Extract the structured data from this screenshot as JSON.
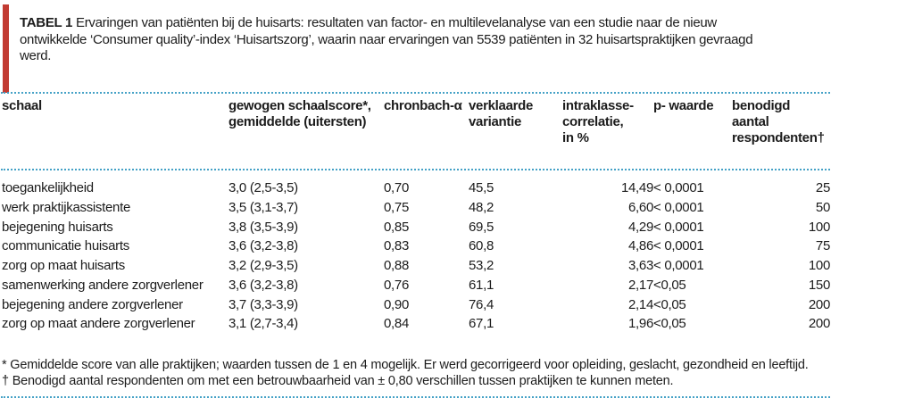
{
  "accent_colors": {
    "red_bar": "#c23b32",
    "dotted_rule": "#44a1c6"
  },
  "title": {
    "label": "TABEL 1",
    "rest_line1": "Ervaringen van patiënten bij de huisarts: resultaten van factor- en multilevelanalyse van een studie naar de nieuw",
    "line2": "ontwikkelde ‘Consumer quality’-index ‘Huisartszorg’, waarin naar ervaringen van 5539 patiënten in 32 huisartspraktijken gevraagd",
    "line3": "werd."
  },
  "table": {
    "header_lines": [
      [
        "schaal"
      ],
      [
        "gewogen schaalscore*,",
        "gemiddelde (uitersten)"
      ],
      [
        "chronbach-α"
      ],
      [
        "verklaarde",
        "variantie"
      ],
      [
        "intraklasse-",
        "correlatie,",
        "in %"
      ],
      [
        "p- waarde"
      ],
      [
        "benodigd",
        "aantal",
        "respondenten†"
      ]
    ],
    "rows": [
      [
        "toegankelijkheid",
        "3,0 (2,5-3,5)",
        "0,70",
        "45,5",
        "14,49",
        "< 0,0001",
        "25"
      ],
      [
        "werk praktijkassistente",
        "3,5 (3,1-3,7)",
        "0,75",
        "48,2",
        "6,60",
        "< 0,0001",
        "50"
      ],
      [
        "bejegening huisarts",
        "3,8 (3,5-3,9)",
        "0,85",
        "69,5",
        "4,29",
        "< 0,0001",
        "100"
      ],
      [
        "communicatie huisarts",
        "3,6 (3,2-3,8)",
        "0,83",
        "60,8",
        "4,86",
        "< 0,0001",
        "75"
      ],
      [
        "zorg op maat huisarts",
        "3,2 (2,9-3,5)",
        "0,88",
        "53,2",
        "3,63",
        "< 0,0001",
        "100"
      ],
      [
        "samenwerking andere zorgverlener",
        "3,6 (3,2-3,8)",
        "0,76",
        "61,1",
        "2,17",
        "<0,05",
        "150"
      ],
      [
        "bejegening andere zorgverlener",
        "3,7 (3,3-3,9)",
        "0,90",
        "76,4",
        "2,14",
        "<0,05",
        "200"
      ],
      [
        "zorg op maat andere zorgverlener",
        "3,1 (2,7-3,4)",
        "0,84",
        "67,1",
        "1,96",
        "<0,05",
        "200"
      ]
    ]
  },
  "footnotes": [
    "* Gemiddelde score van alle praktijken; waarden tussen de 1 en 4 mogelijk. Er werd gecorrigeerd voor opleiding, geslacht, gezondheid en leeftijd.",
    "† Benodigd aantal respondenten om met een betrouwbaarheid van ± 0,80 verschillen tussen praktijken te kunnen meten."
  ]
}
